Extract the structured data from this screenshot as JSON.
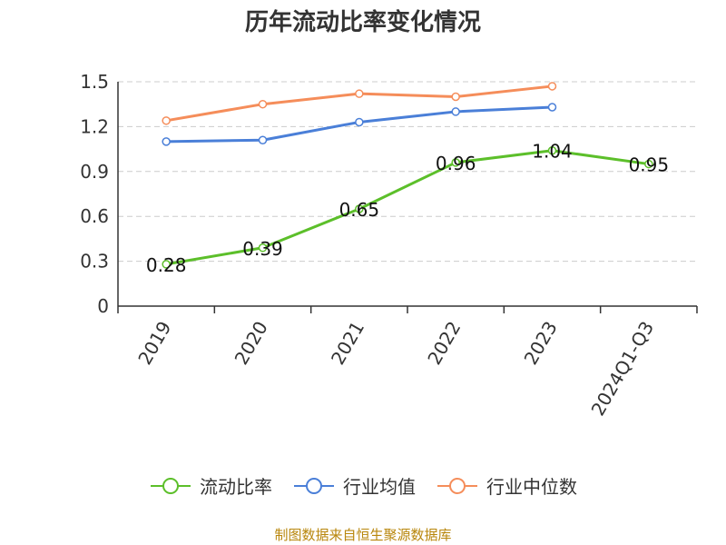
{
  "title": "历年流动比率变化情况",
  "source_note": "制图数据来自恒生聚源数据库",
  "colors": {
    "series": [
      "#5cbf2a",
      "#4a7fd8",
      "#f58d5a"
    ],
    "grid": "#cccccc",
    "axis": "#333333",
    "text": "#333333",
    "source": "#b8860b"
  },
  "chart_data": {
    "type": "line",
    "categories": [
      "2019",
      "2020",
      "2021",
      "2022",
      "2023",
      "2024Q1-Q3"
    ],
    "ylim": [
      0,
      1.5
    ],
    "yticks": [
      "0",
      "0.3",
      "0.6",
      "0.9",
      "1.2",
      "1.5"
    ],
    "grid": "horizontal dashed",
    "legend_position": "bottom",
    "series": [
      {
        "name": "流动比率",
        "values": [
          0.28,
          0.39,
          0.65,
          0.96,
          1.04,
          0.95
        ],
        "labels": [
          "0.28",
          "0.39",
          "0.65",
          "0.96",
          "1.04",
          "0.95"
        ]
      },
      {
        "name": "行业均值",
        "values": [
          1.1,
          1.11,
          1.23,
          1.3,
          1.33,
          null
        ]
      },
      {
        "name": "行业中位数",
        "values": [
          1.24,
          1.35,
          1.42,
          1.4,
          1.47,
          null
        ]
      }
    ]
  }
}
